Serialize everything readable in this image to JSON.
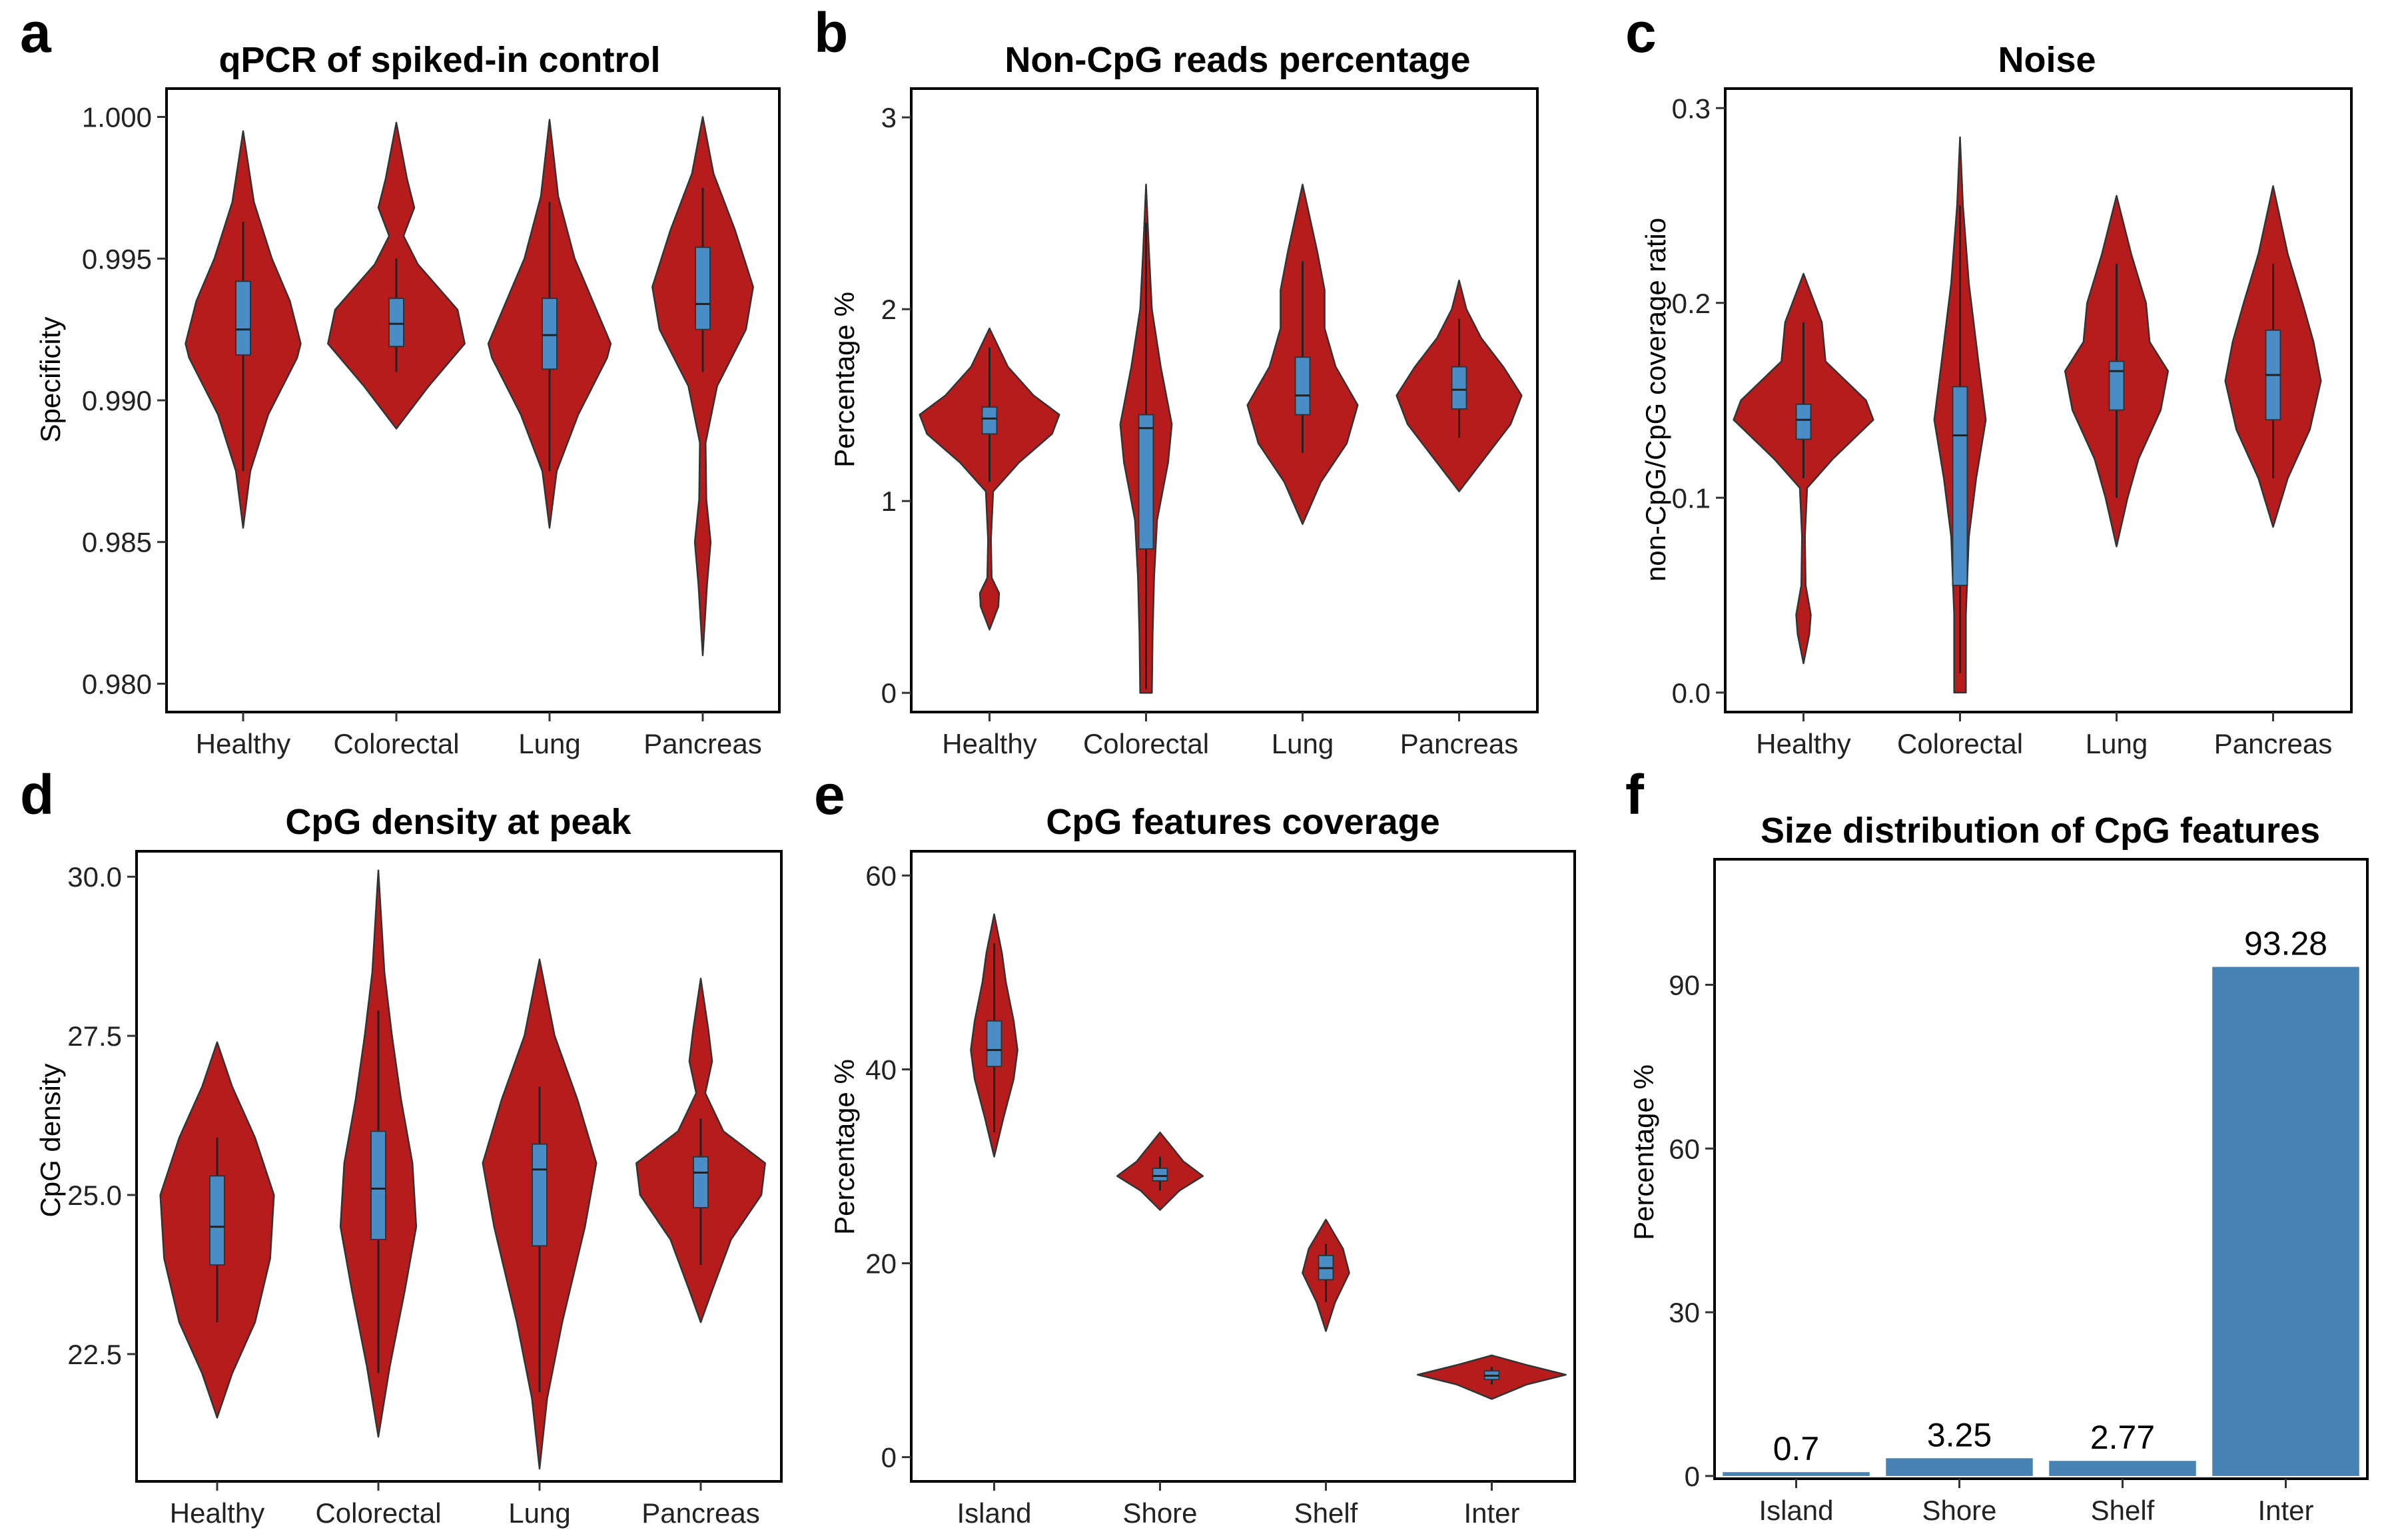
{
  "colors": {
    "violin": "#b71c1c",
    "box": "#4a8cc6",
    "bar": "#4682b4",
    "outline": "#333333"
  },
  "chart_data": [
    {
      "type": "violin",
      "letter": "a",
      "title": "qPCR of spiked-in control",
      "ylabel": "Specificity",
      "ylim": [
        0.979,
        1.001
      ],
      "yticks": [
        0.98,
        0.985,
        0.99,
        0.995,
        1.0
      ],
      "ytick_labels": [
        "0.980",
        "0.985",
        "0.990",
        "0.995",
        "1.000"
      ],
      "categories": [
        "Healthy",
        "Colorectal",
        "Lung",
        "Pancreas"
      ],
      "groups": [
        {
          "min": 0.9855,
          "max": 0.9995,
          "q1": 0.9916,
          "median": 0.9925,
          "q3": 0.9942,
          "wlo": 0.9875,
          "whi": 0.9963,
          "density": [
            [
              0.9855,
              0.0
            ],
            [
              0.9875,
              0.1
            ],
            [
              0.9895,
              0.35
            ],
            [
              0.9915,
              0.75
            ],
            [
              0.992,
              0.8
            ],
            [
              0.9935,
              0.65
            ],
            [
              0.995,
              0.4
            ],
            [
              0.997,
              0.15
            ],
            [
              0.9995,
              0.0
            ]
          ]
        },
        {
          "min": 0.989,
          "max": 0.9998,
          "q1": 0.9919,
          "median": 0.9927,
          "q3": 0.9936,
          "wlo": 0.991,
          "whi": 0.995,
          "density": [
            [
              0.989,
              0.0
            ],
            [
              0.9905,
              0.45
            ],
            [
              0.992,
              0.95
            ],
            [
              0.9932,
              0.85
            ],
            [
              0.9948,
              0.3
            ],
            [
              0.9958,
              0.1
            ],
            [
              0.9968,
              0.25
            ],
            [
              0.9978,
              0.15
            ],
            [
              0.9998,
              0.0
            ]
          ]
        },
        {
          "min": 0.9855,
          "max": 0.9999,
          "q1": 0.9911,
          "median": 0.9923,
          "q3": 0.9936,
          "wlo": 0.9875,
          "whi": 0.997,
          "density": [
            [
              0.9855,
              0.0
            ],
            [
              0.9875,
              0.1
            ],
            [
              0.9895,
              0.4
            ],
            [
              0.9915,
              0.8
            ],
            [
              0.992,
              0.85
            ],
            [
              0.9935,
              0.6
            ],
            [
              0.995,
              0.35
            ],
            [
              0.9972,
              0.12
            ],
            [
              0.9999,
              0.0
            ]
          ]
        },
        {
          "min": 0.981,
          "max": 1.0,
          "q1": 0.9925,
          "median": 0.9934,
          "q3": 0.9954,
          "wlo": 0.991,
          "whi": 0.9975,
          "density": [
            [
              0.981,
              0.0
            ],
            [
              0.9835,
              0.06
            ],
            [
              0.985,
              0.11
            ],
            [
              0.9865,
              0.05
            ],
            [
              0.9885,
              0.04
            ],
            [
              0.9905,
              0.2
            ],
            [
              0.9925,
              0.6
            ],
            [
              0.994,
              0.7
            ],
            [
              0.996,
              0.45
            ],
            [
              0.998,
              0.15
            ],
            [
              1.0,
              0.0
            ]
          ]
        }
      ]
    },
    {
      "type": "violin",
      "letter": "b",
      "title": "Non-CpG reads percentage",
      "ylabel": "Percentage %",
      "ylim": [
        -0.1,
        3.15
      ],
      "yticks": [
        0,
        1,
        2,
        3
      ],
      "ytick_labels": [
        "0",
        "1",
        "2",
        "3"
      ],
      "categories": [
        "Healthy",
        "Colorectal",
        "Lung",
        "Pancreas"
      ],
      "groups": [
        {
          "min": 0.33,
          "max": 1.9,
          "q1": 1.35,
          "median": 1.43,
          "q3": 1.49,
          "wlo": 1.1,
          "whi": 1.8,
          "density": [
            [
              0.33,
              0.0
            ],
            [
              0.45,
              0.12
            ],
            [
              0.52,
              0.13
            ],
            [
              0.6,
              0.03
            ],
            [
              0.8,
              0.02
            ],
            [
              1.05,
              0.05
            ],
            [
              1.2,
              0.4
            ],
            [
              1.35,
              0.85
            ],
            [
              1.45,
              0.95
            ],
            [
              1.55,
              0.6
            ],
            [
              1.7,
              0.25
            ],
            [
              1.9,
              0.0
            ]
          ]
        },
        {
          "min": 0.0,
          "max": 2.65,
          "q1": 0.75,
          "median": 1.38,
          "q3": 1.45,
          "wlo": 0.02,
          "whi": 2.45,
          "density": [
            [
              0.0,
              0.08
            ],
            [
              0.3,
              0.09
            ],
            [
              0.6,
              0.11
            ],
            [
              0.9,
              0.15
            ],
            [
              1.2,
              0.3
            ],
            [
              1.4,
              0.35
            ],
            [
              1.7,
              0.2
            ],
            [
              2.0,
              0.08
            ],
            [
              2.3,
              0.04
            ],
            [
              2.65,
              0.0
            ]
          ]
        },
        {
          "min": 0.88,
          "max": 2.65,
          "q1": 1.45,
          "median": 1.55,
          "q3": 1.75,
          "wlo": 1.25,
          "whi": 2.25,
          "density": [
            [
              0.88,
              0.0
            ],
            [
              1.1,
              0.25
            ],
            [
              1.3,
              0.6
            ],
            [
              1.5,
              0.75
            ],
            [
              1.7,
              0.45
            ],
            [
              1.9,
              0.3
            ],
            [
              2.1,
              0.3
            ],
            [
              2.3,
              0.2
            ],
            [
              2.65,
              0.0
            ]
          ]
        },
        {
          "min": 1.05,
          "max": 2.15,
          "q1": 1.48,
          "median": 1.58,
          "q3": 1.7,
          "wlo": 1.33,
          "whi": 1.95,
          "density": [
            [
              1.05,
              0.0
            ],
            [
              1.2,
              0.3
            ],
            [
              1.4,
              0.7
            ],
            [
              1.55,
              0.85
            ],
            [
              1.7,
              0.6
            ],
            [
              1.85,
              0.3
            ],
            [
              2.0,
              0.1
            ],
            [
              2.15,
              0.0
            ]
          ]
        }
      ]
    },
    {
      "type": "violin",
      "letter": "c",
      "title": "Noise",
      "ylabel": "non-CpG/CpG coverage ratio",
      "ylim": [
        -0.01,
        0.31
      ],
      "yticks": [
        0.0,
        0.1,
        0.2,
        0.3
      ],
      "ytick_labels": [
        "0.0",
        "0.1",
        "0.2",
        "0.3"
      ],
      "categories": [
        "Healthy",
        "Colorectal",
        "Lung",
        "Pancreas"
      ],
      "groups": [
        {
          "min": 0.015,
          "max": 0.215,
          "q1": 0.13,
          "median": 0.14,
          "q3": 0.148,
          "wlo": 0.11,
          "whi": 0.19,
          "density": [
            [
              0.015,
              0.0
            ],
            [
              0.03,
              0.08
            ],
            [
              0.04,
              0.1
            ],
            [
              0.055,
              0.03
            ],
            [
              0.08,
              0.02
            ],
            [
              0.105,
              0.05
            ],
            [
              0.12,
              0.4
            ],
            [
              0.14,
              0.95
            ],
            [
              0.15,
              0.85
            ],
            [
              0.17,
              0.3
            ],
            [
              0.19,
              0.25
            ],
            [
              0.215,
              0.0
            ]
          ]
        },
        {
          "min": 0.0,
          "max": 0.285,
          "q1": 0.055,
          "median": 0.132,
          "q3": 0.157,
          "wlo": 0.01,
          "whi": 0.25,
          "density": [
            [
              0.0,
              0.08
            ],
            [
              0.04,
              0.08
            ],
            [
              0.08,
              0.12
            ],
            [
              0.11,
              0.22
            ],
            [
              0.14,
              0.35
            ],
            [
              0.17,
              0.25
            ],
            [
              0.21,
              0.12
            ],
            [
              0.25,
              0.04
            ],
            [
              0.285,
              0.0
            ]
          ]
        },
        {
          "min": 0.075,
          "max": 0.255,
          "q1": 0.145,
          "median": 0.165,
          "q3": 0.17,
          "wlo": 0.1,
          "whi": 0.22,
          "density": [
            [
              0.075,
              0.0
            ],
            [
              0.1,
              0.15
            ],
            [
              0.12,
              0.3
            ],
            [
              0.145,
              0.6
            ],
            [
              0.165,
              0.7
            ],
            [
              0.18,
              0.45
            ],
            [
              0.2,
              0.4
            ],
            [
              0.225,
              0.2
            ],
            [
              0.255,
              0.0
            ]
          ]
        },
        {
          "min": 0.085,
          "max": 0.26,
          "q1": 0.14,
          "median": 0.163,
          "q3": 0.186,
          "wlo": 0.11,
          "whi": 0.22,
          "density": [
            [
              0.085,
              0.0
            ],
            [
              0.11,
              0.2
            ],
            [
              0.135,
              0.5
            ],
            [
              0.16,
              0.65
            ],
            [
              0.18,
              0.55
            ],
            [
              0.2,
              0.4
            ],
            [
              0.225,
              0.2
            ],
            [
              0.26,
              0.0
            ]
          ]
        }
      ]
    },
    {
      "type": "violin",
      "letter": "d",
      "title": "CpG density at peak",
      "ylabel": "CpG density",
      "ylim": [
        20.5,
        30.4
      ],
      "yticks": [
        22.5,
        25.0,
        27.5,
        30.0
      ],
      "ytick_labels": [
        "22.5",
        "25.0",
        "27.5",
        "30.0"
      ],
      "categories": [
        "Healthy",
        "Colorectal",
        "Lung",
        "Pancreas"
      ],
      "groups": [
        {
          "min": 21.5,
          "max": 27.4,
          "q1": 23.9,
          "median": 24.5,
          "q3": 25.3,
          "wlo": 23.0,
          "whi": 25.9,
          "density": [
            [
              21.5,
              0.0
            ],
            [
              22.2,
              0.2
            ],
            [
              23.0,
              0.5
            ],
            [
              24.0,
              0.7
            ],
            [
              25.0,
              0.75
            ],
            [
              25.9,
              0.5
            ],
            [
              26.7,
              0.2
            ],
            [
              27.4,
              0.0
            ]
          ]
        },
        {
          "min": 21.2,
          "max": 30.1,
          "q1": 24.3,
          "median": 25.1,
          "q3": 26.0,
          "wlo": 22.2,
          "whi": 27.9,
          "density": [
            [
              21.2,
              0.0
            ],
            [
              22.3,
              0.15
            ],
            [
              23.5,
              0.35
            ],
            [
              24.5,
              0.5
            ],
            [
              25.5,
              0.45
            ],
            [
              26.5,
              0.3
            ],
            [
              27.5,
              0.18
            ],
            [
              28.5,
              0.08
            ],
            [
              30.1,
              0.0
            ]
          ]
        },
        {
          "min": 20.7,
          "max": 28.7,
          "q1": 24.2,
          "median": 25.4,
          "q3": 25.8,
          "wlo": 21.9,
          "whi": 26.7,
          "density": [
            [
              20.7,
              0.0
            ],
            [
              21.8,
              0.1
            ],
            [
              23.0,
              0.3
            ],
            [
              24.5,
              0.6
            ],
            [
              25.5,
              0.75
            ],
            [
              26.5,
              0.5
            ],
            [
              27.5,
              0.2
            ],
            [
              28.7,
              0.0
            ]
          ]
        },
        {
          "min": 23.0,
          "max": 28.4,
          "q1": 24.8,
          "median": 25.35,
          "q3": 25.6,
          "wlo": 23.9,
          "whi": 26.2,
          "density": [
            [
              23.0,
              0.0
            ],
            [
              23.5,
              0.15
            ],
            [
              24.3,
              0.4
            ],
            [
              25.0,
              0.8
            ],
            [
              25.5,
              0.85
            ],
            [
              26.0,
              0.3
            ],
            [
              26.6,
              0.06
            ],
            [
              27.1,
              0.15
            ],
            [
              27.6,
              0.1
            ],
            [
              28.4,
              0.0
            ]
          ]
        }
      ]
    },
    {
      "type": "violin",
      "letter": "e",
      "title": "CpG features coverage",
      "ylabel": "Percentage %",
      "ylim": [
        -2.5,
        62.5
      ],
      "yticks": [
        0,
        20,
        40,
        60
      ],
      "ytick_labels": [
        "0",
        "20",
        "40",
        "60"
      ],
      "categories": [
        "Island",
        "Shore",
        "Shelf",
        "Inter"
      ],
      "groups": [
        {
          "min": 31.0,
          "max": 56.0,
          "q1": 40.3,
          "median": 42.0,
          "q3": 45.0,
          "wlo": 33.5,
          "whi": 53.0,
          "density": [
            [
              31.0,
              0.0
            ],
            [
              35.0,
              0.12
            ],
            [
              39.0,
              0.25
            ],
            [
              42.0,
              0.3
            ],
            [
              45.0,
              0.25
            ],
            [
              49.0,
              0.15
            ],
            [
              52.0,
              0.1
            ],
            [
              56.0,
              0.0
            ]
          ]
        },
        {
          "min": 25.5,
          "max": 33.5,
          "q1": 28.5,
          "median": 29.0,
          "q3": 29.8,
          "wlo": 27.5,
          "whi": 31.0,
          "density": [
            [
              25.5,
              0.0
            ],
            [
              27.5,
              0.25
            ],
            [
              29.0,
              0.55
            ],
            [
              30.5,
              0.3
            ],
            [
              33.5,
              0.0
            ]
          ]
        },
        {
          "min": 13.0,
          "max": 24.5,
          "q1": 18.3,
          "median": 19.5,
          "q3": 20.8,
          "wlo": 16.0,
          "whi": 22.0,
          "density": [
            [
              13.0,
              0.0
            ],
            [
              16.0,
              0.12
            ],
            [
              19.0,
              0.3
            ],
            [
              21.5,
              0.22
            ],
            [
              24.5,
              0.0
            ]
          ]
        },
        {
          "min": 6.0,
          "max": 10.5,
          "q1": 8.0,
          "median": 8.4,
          "q3": 8.9,
          "wlo": 7.5,
          "whi": 9.3,
          "density": [
            [
              6.0,
              0.0
            ],
            [
              7.5,
              0.45
            ],
            [
              8.5,
              0.95
            ],
            [
              9.5,
              0.45
            ],
            [
              10.5,
              0.0
            ]
          ]
        }
      ]
    },
    {
      "type": "bar",
      "letter": "f",
      "title": "Size distribution of CpG features",
      "ylabel": "Percentage %",
      "ylim": [
        -0.5,
        113
      ],
      "yticks": [
        0,
        30,
        60,
        90
      ],
      "ytick_labels": [
        "0",
        "30",
        "60",
        "90"
      ],
      "categories": [
        "Island",
        "Shore",
        "Shelf",
        "Inter"
      ],
      "values": [
        0.7,
        3.25,
        2.77,
        93.28
      ],
      "value_labels": [
        "0.7",
        "3.25",
        "2.77",
        "93.28"
      ]
    }
  ]
}
